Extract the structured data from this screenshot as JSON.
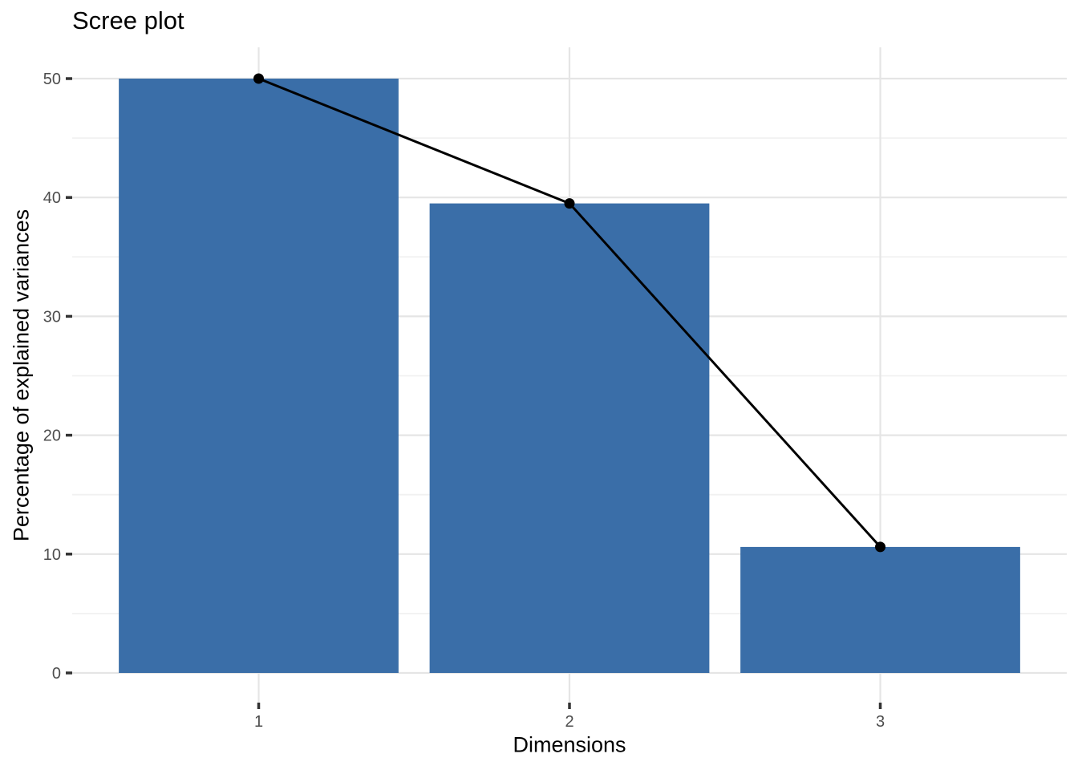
{
  "chart_data": {
    "type": "bar",
    "overlay": "line-with-points",
    "title": "Scree plot",
    "xlabel": "Dimensions",
    "ylabel": "Percentage of explained variances",
    "categories": [
      "1",
      "2",
      "3"
    ],
    "values": [
      50,
      39.5,
      10.6
    ],
    "series": [
      {
        "name": "connecting-line",
        "type": "line",
        "values": [
          50,
          39.5,
          10.6
        ]
      }
    ],
    "ylim": [
      0,
      50
    ],
    "yticks": [
      0,
      10,
      20,
      30,
      40,
      50
    ],
    "yticks_minor": [
      5,
      15,
      25,
      35,
      45
    ],
    "grid": "major-and-minor",
    "legend_position": "none",
    "colors": {
      "bar_fill": "#3A6EA8",
      "line": "#000000",
      "point": "#000000",
      "grid_major": "#E5E5E5",
      "grid_minor": "#F1F1F1",
      "tick_mark": "#333333",
      "tick_label": "#4D4D4D",
      "title_text": "#000000",
      "background": "#FFFFFF"
    }
  }
}
